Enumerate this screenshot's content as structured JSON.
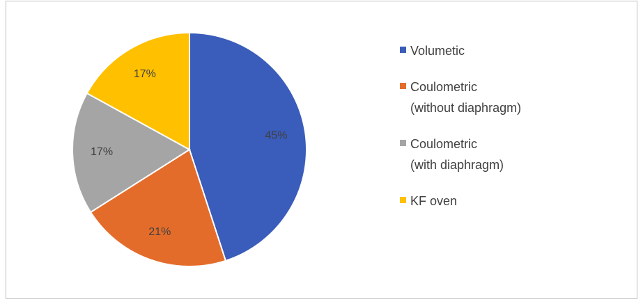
{
  "chart_data": {
    "type": "pie",
    "categories": [
      "Volumetic",
      "Coulometric\n(without diaphragm)",
      "Coulometric\n(with diaphragm)",
      "KF oven"
    ],
    "values": [
      45,
      21,
      17,
      17
    ],
    "value_labels": [
      "45%",
      "21%",
      "17%",
      "17%"
    ],
    "colors": [
      "#3a5cba",
      "#e46c2a",
      "#a5a5a5",
      "#ffc000"
    ],
    "legend": "right"
  }
}
